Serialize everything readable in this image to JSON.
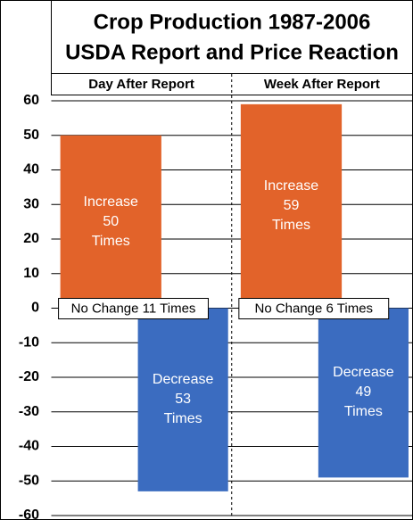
{
  "chart_data": {
    "type": "bar",
    "title": "Crop Production 1987-2006",
    "subtitle": "USDA Report and Price Reaction",
    "categories": [
      "Day After Report",
      "Week After Report"
    ],
    "series": [
      {
        "name": "Increase",
        "color": "#e2632a",
        "values": [
          50,
          59
        ],
        "value_labels": [
          "Increase 50 Times",
          "Increase 59 Times"
        ]
      },
      {
        "name": "Decrease",
        "color": "#3b6cc0",
        "values": [
          -53,
          -49
        ],
        "value_labels": [
          "Decrease 53 Times",
          "Decrease 49 Times"
        ]
      },
      {
        "name": "No Change",
        "color": "#ffffff",
        "values": [
          11,
          6
        ],
        "value_labels": [
          "No Change 11 Times",
          "No Change 6 Times"
        ]
      }
    ],
    "ylim": [
      -60,
      60
    ],
    "yticks": [
      60,
      50,
      40,
      30,
      20,
      10,
      0,
      -10,
      -20,
      -30,
      -40,
      -50,
      -60
    ],
    "grid": true
  }
}
